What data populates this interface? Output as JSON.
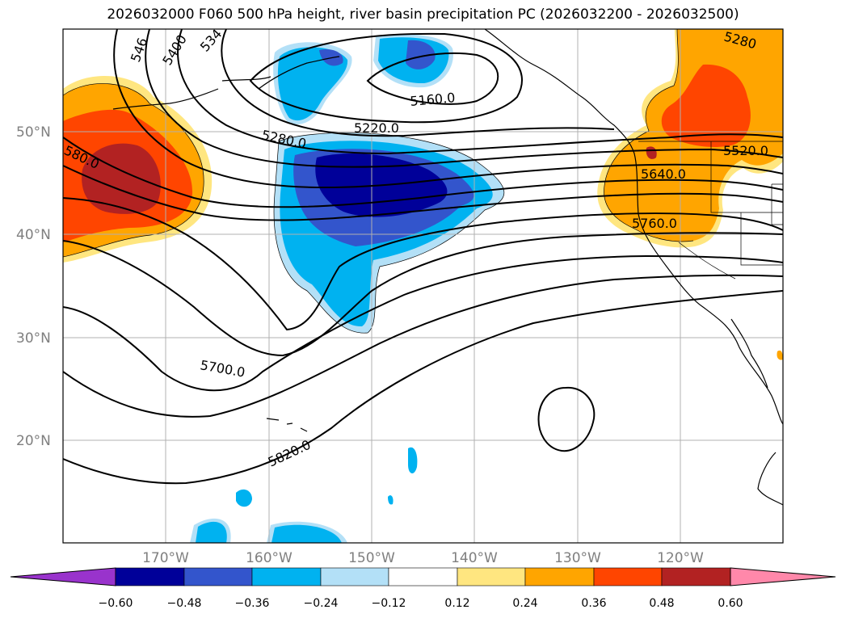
{
  "title": "2026032000 F060 500 hPa height, river basin precipitation PC (2026032200 - 2026032500)",
  "latitude_labels": [
    "50°N",
    "40°N",
    "30°N",
    "20°N"
  ],
  "longitude_labels": [
    "170°W",
    "160°W",
    "150°W",
    "140°W",
    "130°W",
    "120°W"
  ],
  "contour_labels": [
    "546",
    "5400",
    "534",
    "5160.0",
    "5220.0",
    "5280.0",
    "580.0",
    "5280",
    "5520.0",
    "5640.0",
    "5760.0",
    "5700.0",
    "5820.0"
  ],
  "colorbar": {
    "ticks": [
      "−0.60",
      "−0.48",
      "−0.36",
      "−0.24",
      "−0.12",
      "0.12",
      "0.24",
      "0.36",
      "0.48",
      "0.60"
    ],
    "colors": [
      "#9933cc",
      "#000099",
      "#3355cc",
      "#00b2f0",
      "#b3e0f7",
      "#ffffff",
      "#ffe680",
      "#ffa500",
      "#ff4500",
      "#b22222",
      "#ff88aa"
    ]
  }
}
